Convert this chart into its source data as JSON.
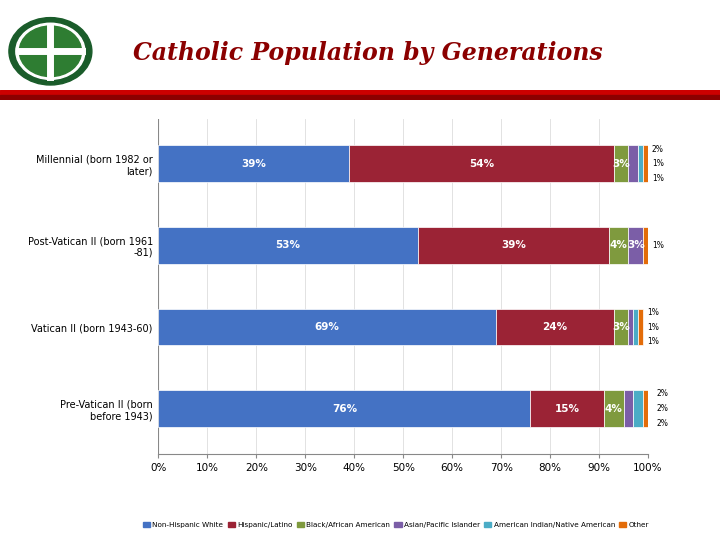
{
  "title": "Catholic Population by Generations",
  "categories": [
    "Millennial (born 1982 or\nlater)",
    "Post-Vatican II (born 1961\n-81)",
    "Vatican II (born 1943-60)",
    "Pre-Vatican II (born\nbefore 1943)"
  ],
  "series": [
    {
      "label": "Non-Hispanic White",
      "color": "#4472C4",
      "values": [
        39,
        53,
        69,
        76
      ]
    },
    {
      "label": "Hispanic/Latino",
      "color": "#9B2335",
      "values": [
        54,
        39,
        24,
        15
      ]
    },
    {
      "label": "Black/African American",
      "color": "#7F9A3E",
      "values": [
        3,
        4,
        3,
        4
      ]
    },
    {
      "label": "Asian/Pacific Islander",
      "color": "#7B5EA7",
      "values": [
        2,
        3,
        1,
        2
      ]
    },
    {
      "label": "American Indian/Native American",
      "color": "#4BACC6",
      "values": [
        1,
        0,
        1,
        2
      ]
    },
    {
      "label": "Other",
      "color": "#E36C09",
      "values": [
        1,
        1,
        1,
        2
      ]
    }
  ],
  "xlim": [
    0,
    100
  ],
  "xticks": [
    0,
    10,
    20,
    30,
    40,
    50,
    60,
    70,
    80,
    90,
    100
  ],
  "xtick_labels": [
    "0%",
    "10%",
    "20%",
    "30%",
    "40%",
    "50%",
    "60%",
    "70%",
    "80%",
    "90%",
    "100%"
  ],
  "bar_height": 0.45,
  "title_color": "#8B0000",
  "title_fontsize": 17,
  "background_color": "#FFFFFF"
}
